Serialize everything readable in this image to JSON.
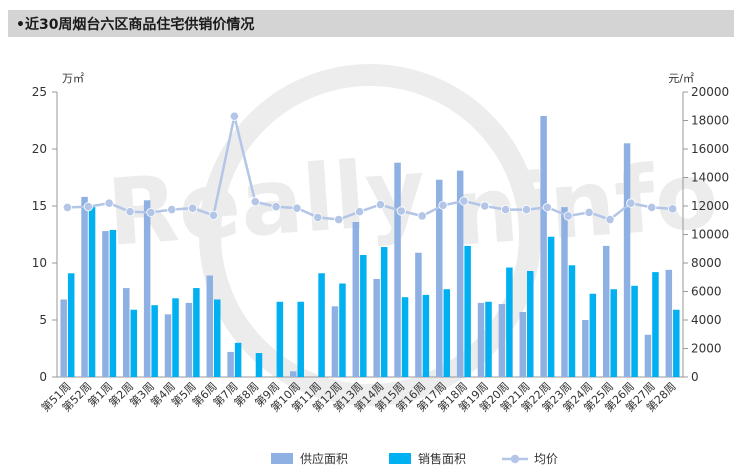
{
  "title": "•近30周烟台六区商品住宅供销价情况",
  "chart_data": {
    "type": "bar",
    "left_unit": "万㎡",
    "right_unit": "元/㎡",
    "ylim_left": [
      0,
      25
    ],
    "ylim_right": [
      0,
      20000
    ],
    "left_ticks": [
      0,
      5,
      10,
      15,
      20,
      25
    ],
    "right_ticks": [
      0,
      2000,
      4000,
      6000,
      8000,
      10000,
      12000,
      14000,
      16000,
      18000,
      20000
    ],
    "categories": [
      "第51周",
      "第52周",
      "第1周",
      "第2周",
      "第3周",
      "第4周",
      "第5周",
      "第6周",
      "第7周",
      "第8周",
      "第9周",
      "第10周",
      "第11周",
      "第12周",
      "第13周",
      "第14周",
      "第15周",
      "第16周",
      "第17周",
      "第18周",
      "第19周",
      "第20周",
      "第21周",
      "第22周",
      "第23周",
      "第24周",
      "第25周",
      "第26周",
      "第27周",
      "第28周"
    ],
    "series": [
      {
        "name": "供应面积",
        "type": "bar",
        "axis": "left",
        "color": "#8fb0e2",
        "values": [
          6.8,
          15.8,
          12.8,
          7.8,
          15.5,
          5.5,
          6.5,
          8.9,
          2.2,
          0,
          0,
          0.5,
          0,
          6.2,
          13.6,
          8.6,
          18.8,
          10.9,
          17.3,
          18.1,
          6.5,
          6.4,
          5.7,
          22.9,
          14.9,
          5.0,
          11.5,
          20.5,
          3.7,
          9.4
        ]
      },
      {
        "name": "销售面积",
        "type": "bar",
        "axis": "left",
        "color": "#00b0f0",
        "values": [
          9.1,
          14.9,
          12.9,
          5.9,
          6.3,
          6.9,
          7.8,
          6.8,
          3.0,
          2.1,
          6.6,
          6.6,
          9.1,
          8.2,
          10.7,
          11.4,
          7.0,
          7.2,
          7.7,
          11.5,
          6.6,
          9.6,
          9.3,
          12.3,
          9.8,
          7.3,
          7.7,
          8.0,
          9.2,
          5.9
        ]
      },
      {
        "name": "均价",
        "type": "line",
        "axis": "right",
        "color": "#b3c6e8",
        "values": [
          11900,
          11950,
          12200,
          11600,
          11550,
          11750,
          11850,
          11350,
          18300,
          12300,
          11950,
          11850,
          11200,
          11050,
          11600,
          12100,
          11650,
          11300,
          12050,
          12350,
          12000,
          11750,
          11750,
          11900,
          11300,
          11550,
          11050,
          12200,
          11900,
          11800
        ]
      }
    ],
    "legend_position": "bottom-center",
    "grid": true
  }
}
